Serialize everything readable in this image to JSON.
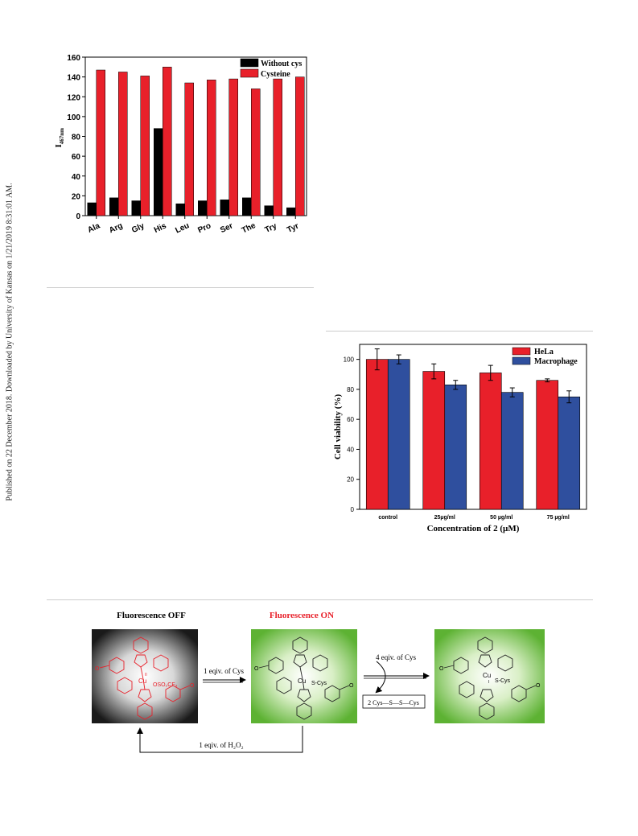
{
  "sidebar_text": "Published on 22 December 2018. Downloaded by University of Kansas on 1/21/2019 8:31:01 AM.",
  "chart_data": [
    {
      "type": "bar",
      "categories": [
        "Ala",
        "Arg",
        "Gly",
        "His",
        "Leu",
        "Pro",
        "Ser",
        "The",
        "Try",
        "Tyr"
      ],
      "series": [
        {
          "name": "Without cys",
          "color": "#000000",
          "values": [
            13,
            18,
            15,
            88,
            12,
            15,
            16,
            18,
            10,
            8
          ]
        },
        {
          "name": "Cysteine",
          "color": "#e8202a",
          "values": [
            147,
            145,
            141,
            150,
            134,
            137,
            138,
            128,
            138,
            140
          ]
        }
      ],
      "ylabel_main": "I",
      "ylabel_sub": "467nm",
      "ylim": [
        0,
        160
      ],
      "yticks": [
        0,
        20,
        40,
        60,
        80,
        100,
        120,
        140,
        160
      ],
      "legend_position": "top-right"
    },
    {
      "type": "bar",
      "categories": [
        "control",
        "25µg/ml",
        "50 µg/ml",
        "75 µg/ml"
      ],
      "series": [
        {
          "name": "HeLa",
          "color": "#e8202a",
          "values": [
            100,
            92,
            91,
            86
          ],
          "errors": [
            7,
            5,
            5,
            1
          ]
        },
        {
          "name": "Macrophage",
          "color": "#2f4f9e",
          "values": [
            100,
            83,
            78,
            75
          ],
          "errors": [
            3,
            3,
            3,
            4
          ]
        }
      ],
      "ylabel": "Cell viability (%)",
      "xlabel": "Concentration of 2 (µM)",
      "ylim": [
        0,
        110
      ],
      "yticks": [
        0,
        20,
        40,
        60,
        80,
        100
      ],
      "legend_position": "top-right"
    }
  ],
  "scheme": {
    "label_off": "Fluorescence OFF",
    "label_on": "Fluorescence ON",
    "arrow1": "1 eqiv. of Cys",
    "arrow2": "4 eqiv. of Cys",
    "arrow_back": "1 eqiv. of H₂O₂",
    "byproduct": "2 Cys—S—S—Cys",
    "atom_cu": "Cu",
    "atom_n": "N",
    "ox_state": "II",
    "ox_state_2": "I",
    "ligand_otf": "OSO₂CF₃",
    "ligand_scys": "S-Cys",
    "methoxy": "O",
    "off_color": "#e8202a",
    "on_color": "#e8202a"
  }
}
